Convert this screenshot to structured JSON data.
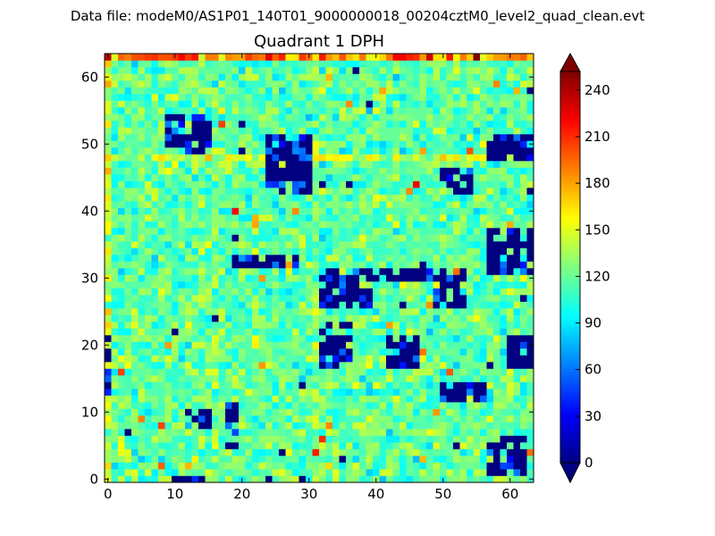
{
  "figure": {
    "suptitle": "Data file: modeM0/AS1P01_140T01_9000000018_00204cztM0_level2_quad_clean.evt"
  },
  "chart_data": {
    "type": "heatmap",
    "title": "Quadrant 1 DPH",
    "xlabel": "",
    "ylabel": "",
    "shape": [
      64,
      64
    ],
    "xlim": [
      -0.5,
      63.5
    ],
    "ylim": [
      -0.5,
      63.5
    ],
    "xticks": [
      "0",
      "10",
      "20",
      "30",
      "40",
      "50",
      "60"
    ],
    "yticks": [
      "0",
      "10",
      "20",
      "30",
      "40",
      "50",
      "60"
    ],
    "colormap": "jet",
    "vmin": 0,
    "vmax": 252,
    "colorbar": {
      "ticks": [
        "0",
        "30",
        "60",
        "90",
        "120",
        "150",
        "180",
        "210",
        "240"
      ],
      "extend": "both"
    },
    "typical_counts": {
      "mean": 118,
      "spread": 22
    },
    "note_rows": {
      "hot_top_row": 63,
      "bright_row": 48,
      "bright_column": 0
    },
    "low_count_regions": [
      {
        "cols": [
          9,
          11
        ],
        "rows": [
          50,
          54
        ]
      },
      {
        "cols": [
          12,
          15
        ],
        "rows": [
          49,
          54
        ]
      },
      {
        "cols": [
          24,
          30
        ],
        "rows": [
          43,
          51
        ]
      },
      {
        "cols": [
          19,
          28
        ],
        "rows": [
          32,
          33
        ]
      },
      {
        "cols": [
          32,
          39
        ],
        "rows": [
          26,
          31
        ]
      },
      {
        "cols": [
          40,
          48
        ],
        "rows": [
          30,
          31
        ]
      },
      {
        "cols": [
          49,
          53
        ],
        "rows": [
          26,
          31
        ]
      },
      {
        "cols": [
          57,
          63
        ],
        "rows": [
          31,
          37
        ]
      },
      {
        "cols": [
          32,
          36
        ],
        "rows": [
          17,
          23
        ]
      },
      {
        "cols": [
          42,
          46
        ],
        "rows": [
          17,
          21
        ]
      },
      {
        "cols": [
          60,
          63
        ],
        "rows": [
          17,
          21
        ]
      },
      {
        "cols": [
          0,
          0
        ],
        "rows": [
          13,
          22
        ]
      },
      {
        "cols": [
          57,
          62
        ],
        "rows": [
          1,
          6
        ]
      },
      {
        "cols": [
          10,
          14
        ],
        "rows": [
          0,
          0
        ]
      },
      {
        "cols": [
          50,
          54
        ],
        "rows": [
          43,
          46
        ]
      },
      {
        "cols": [
          57,
          63
        ],
        "rows": [
          48,
          51
        ]
      },
      {
        "cols": [
          12,
          15
        ],
        "rows": [
          8,
          10
        ]
      },
      {
        "cols": [
          18,
          19
        ],
        "rows": [
          5,
          11
        ]
      },
      {
        "cols": [
          50,
          56
        ],
        "rows": [
          12,
          14
        ]
      }
    ]
  }
}
